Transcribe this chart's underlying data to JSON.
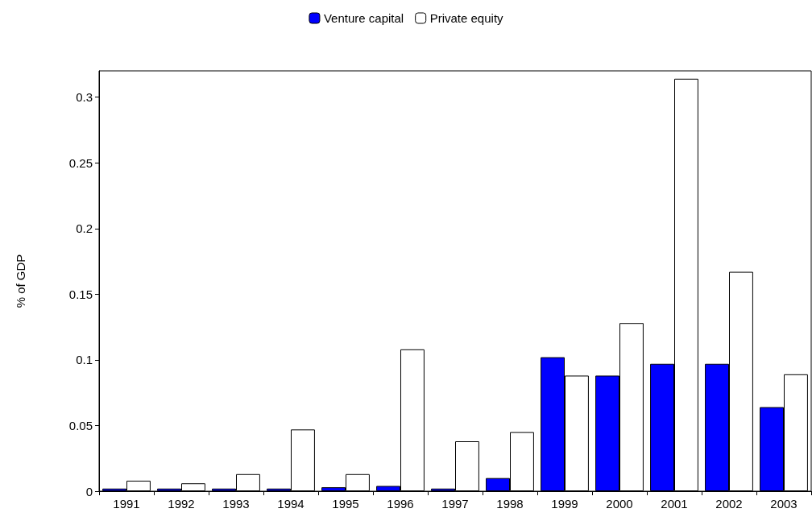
{
  "chart_data": {
    "type": "bar",
    "ylabel": "% of GDP",
    "categories": [
      "1991",
      "1992",
      "1993",
      "1994",
      "1995",
      "1996",
      "1997",
      "1998",
      "1999",
      "2000",
      "2001",
      "2002",
      "2003"
    ],
    "series": [
      {
        "name": "Venture capital",
        "color": "#0000ff",
        "values": [
          0.002,
          0.002,
          0.002,
          0.002,
          0.003,
          0.004,
          0.002,
          0.01,
          0.102,
          0.088,
          0.097,
          0.097,
          0.064
        ]
      },
      {
        "name": "Private equity",
        "color": "#ffffff",
        "values": [
          0.008,
          0.006,
          0.013,
          0.047,
          0.013,
          0.108,
          0.038,
          0.045,
          0.088,
          0.128,
          0.314,
          0.167,
          0.089
        ]
      }
    ],
    "ylim": [
      0,
      0.32
    ],
    "yticks": [
      0,
      0.05,
      0.1,
      0.15,
      0.2,
      0.25,
      0.3
    ],
    "grid": false,
    "legend": "top"
  }
}
